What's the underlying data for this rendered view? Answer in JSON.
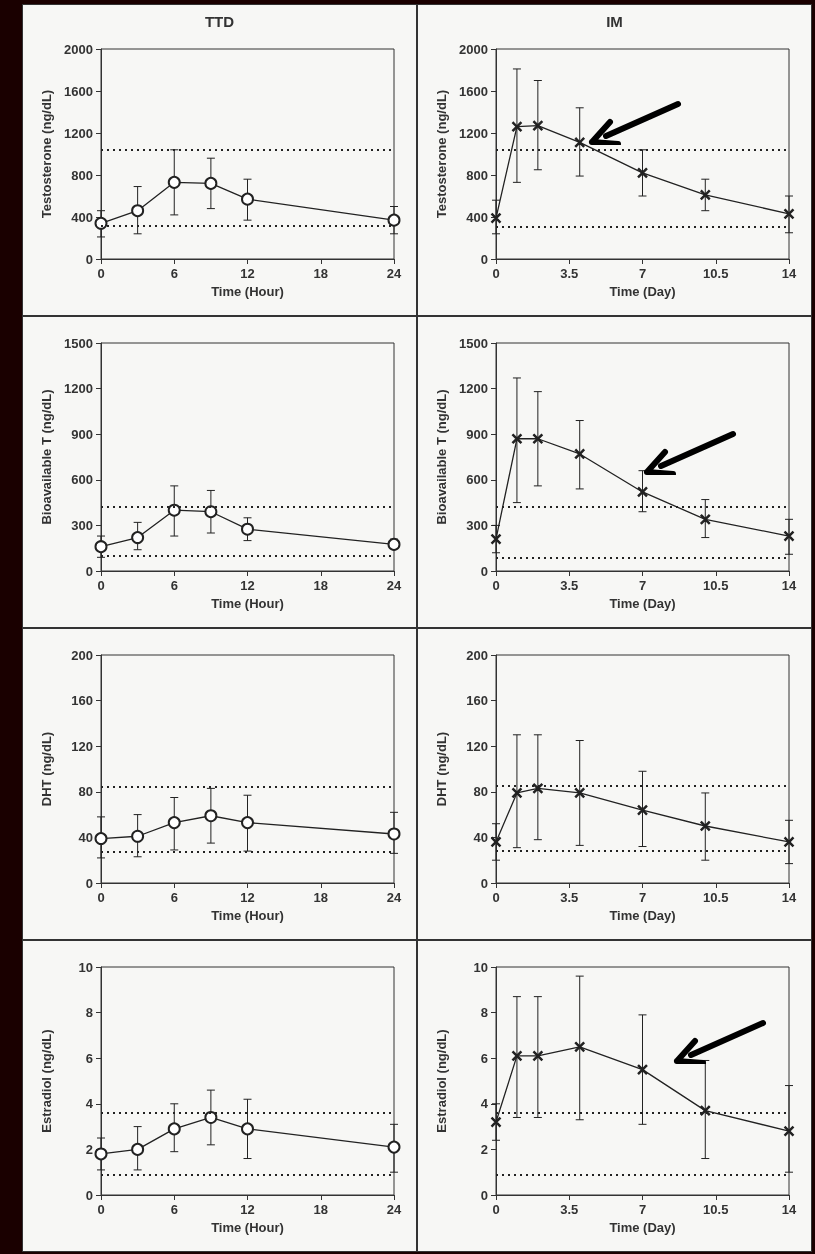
{
  "chart_data": [
    {
      "type": "line",
      "title": "TTD",
      "xlabel": "Time (Hour)",
      "ylabel": "Testosterone (ng/dL)",
      "x": [
        0,
        3,
        6,
        9,
        12,
        24
      ],
      "xlim": [
        0,
        24
      ],
      "xticks": [
        0,
        6,
        12,
        18,
        24
      ],
      "ylim": [
        0,
        2000
      ],
      "yticks": [
        0,
        400,
        800,
        1200,
        1600,
        2000
      ],
      "marker": "circle",
      "line_style": "solid",
      "series": [
        {
          "color": "#222222",
          "values": [
            340,
            460,
            730,
            720,
            570,
            370
          ],
          "errors": [
            [
              210,
              460
            ],
            [
              240,
              690
            ],
            [
              420,
              1040
            ],
            [
              480,
              960
            ],
            [
              370,
              760
            ],
            [
              240,
              500
            ]
          ]
        }
      ],
      "ref_lines": [
        {
          "axis": "y",
          "value": 1040,
          "line_style": "dotted"
        },
        {
          "axis": "y",
          "value": 320,
          "line_style": "dotted"
        }
      ]
    },
    {
      "type": "line",
      "title": "IM",
      "xlabel": "Time (Day)",
      "ylabel": "Testosterone (ng/dL)",
      "x": [
        0,
        1,
        2,
        4,
        7,
        10,
        14
      ],
      "xlim": [
        0,
        14
      ],
      "xticks": [
        0,
        3.5,
        7,
        10.5,
        14
      ],
      "ylim": [
        0,
        2000
      ],
      "yticks": [
        0,
        400,
        800,
        1200,
        1600,
        2000
      ],
      "marker": "cross",
      "line_style": "solid",
      "series": [
        {
          "color": "#222222",
          "values": [
            390,
            1260,
            1270,
            1110,
            820,
            610,
            430
          ],
          "errors": [
            [
              240,
              560
            ],
            [
              730,
              1810
            ],
            [
              850,
              1700
            ],
            [
              790,
              1440
            ],
            [
              600,
              1040
            ],
            [
              460,
              760
            ],
            [
              250,
              600
            ]
          ]
        }
      ],
      "ref_lines": [
        {
          "axis": "y",
          "value": 1040,
          "line_style": "dotted"
        },
        {
          "axis": "y",
          "value": 310,
          "line_style": "dotted"
        }
      ]
    },
    {
      "type": "line",
      "xlabel": "Time (Hour)",
      "ylabel": "Bioavailable T (ng/dL)",
      "x": [
        0,
        3,
        6,
        9,
        12,
        24
      ],
      "xlim": [
        0,
        24
      ],
      "xticks": [
        0,
        6,
        12,
        18,
        24
      ],
      "ylim": [
        0,
        1500
      ],
      "yticks": [
        0,
        300,
        600,
        900,
        1200,
        1500
      ],
      "marker": "circle",
      "line_style": "solid",
      "series": [
        {
          "color": "#222222",
          "values": [
            160,
            220,
            400,
            390,
            275,
            175
          ],
          "errors": [
            [
              90,
              230
            ],
            [
              140,
              320
            ],
            [
              230,
              560
            ],
            [
              250,
              530
            ],
            [
              200,
              350
            ],
            [
              150,
              210
            ]
          ]
        }
      ],
      "ref_lines": [
        {
          "axis": "y",
          "value": 420,
          "line_style": "dotted"
        },
        {
          "axis": "y",
          "value": 100,
          "line_style": "dotted"
        }
      ]
    },
    {
      "type": "line",
      "xlabel": "Time (Day)",
      "ylabel": "Bioavailable T (ng/dL)",
      "x": [
        0,
        1,
        2,
        4,
        7,
        10,
        14
      ],
      "xlim": [
        0,
        14
      ],
      "xticks": [
        0,
        3.5,
        7,
        10.5,
        14
      ],
      "ylim": [
        0,
        1500
      ],
      "yticks": [
        0,
        300,
        600,
        900,
        1200,
        1500
      ],
      "marker": "cross",
      "line_style": "solid",
      "series": [
        {
          "color": "#222222",
          "values": [
            210,
            870,
            870,
            770,
            520,
            340,
            230
          ],
          "errors": [
            [
              120,
              300
            ],
            [
              450,
              1270
            ],
            [
              560,
              1180
            ],
            [
              540,
              990
            ],
            [
              390,
              660
            ],
            [
              220,
              470
            ],
            [
              110,
              340
            ]
          ]
        }
      ],
      "ref_lines": [
        {
          "axis": "y",
          "value": 420,
          "line_style": "dotted"
        },
        {
          "axis": "y",
          "value": 90,
          "line_style": "dotted"
        }
      ]
    },
    {
      "type": "line",
      "xlabel": "Time (Hour)",
      "ylabel": "DHT (ng/dL)",
      "x": [
        0,
        3,
        6,
        9,
        12,
        24
      ],
      "xlim": [
        0,
        24
      ],
      "xticks": [
        0,
        6,
        12,
        18,
        24
      ],
      "ylim": [
        0,
        200
      ],
      "yticks": [
        0,
        40,
        80,
        120,
        160,
        200
      ],
      "marker": "circle",
      "line_style": "solid",
      "series": [
        {
          "color": "#222222",
          "values": [
            39,
            41,
            53,
            59,
            53,
            43
          ],
          "errors": [
            [
              22,
              58
            ],
            [
              23,
              60
            ],
            [
              29,
              75
            ],
            [
              35,
              83
            ],
            [
              28,
              77
            ],
            [
              26,
              62
            ]
          ]
        }
      ],
      "ref_lines": [
        {
          "axis": "y",
          "value": 84,
          "line_style": "dotted"
        },
        {
          "axis": "y",
          "value": 27,
          "line_style": "dotted"
        }
      ]
    },
    {
      "type": "line",
      "xlabel": "Time (Day)",
      "ylabel": "DHT (ng/dL)",
      "x": [
        0,
        1,
        2,
        4,
        7,
        10,
        14
      ],
      "xlim": [
        0,
        14
      ],
      "xticks": [
        0,
        3.5,
        7,
        10.5,
        14
      ],
      "ylim": [
        0,
        200
      ],
      "yticks": [
        0,
        40,
        80,
        120,
        160,
        200
      ],
      "marker": "cross",
      "line_style": "solid",
      "series": [
        {
          "color": "#222222",
          "values": [
            36,
            79,
            83,
            79,
            64,
            50,
            36
          ],
          "errors": [
            [
              20,
              52
            ],
            [
              31,
              130
            ],
            [
              38,
              130
            ],
            [
              33,
              125
            ],
            [
              32,
              98
            ],
            [
              20,
              79
            ],
            [
              17,
              55
            ]
          ]
        }
      ],
      "ref_lines": [
        {
          "axis": "y",
          "value": 85,
          "line_style": "dotted"
        },
        {
          "axis": "y",
          "value": 28,
          "line_style": "dotted"
        }
      ]
    },
    {
      "type": "line",
      "xlabel": "Time (Hour)",
      "ylabel": "Estradiol (ng/dL)",
      "x": [
        0,
        3,
        6,
        9,
        12,
        24
      ],
      "xlim": [
        0,
        24
      ],
      "xticks": [
        0,
        6,
        12,
        18,
        24
      ],
      "ylim": [
        0,
        10
      ],
      "yticks": [
        0,
        2,
        4,
        6,
        8,
        10
      ],
      "marker": "circle",
      "line_style": "solid",
      "series": [
        {
          "color": "#222222",
          "values": [
            1.8,
            2.0,
            2.9,
            3.4,
            2.9,
            2.1
          ],
          "errors": [
            [
              1.1,
              2.5
            ],
            [
              1.1,
              3.0
            ],
            [
              1.9,
              4.0
            ],
            [
              2.2,
              4.6
            ],
            [
              1.6,
              4.2
            ],
            [
              1.0,
              3.1
            ]
          ]
        }
      ],
      "ref_lines": [
        {
          "axis": "y",
          "value": 3.6,
          "line_style": "dotted"
        },
        {
          "axis": "y",
          "value": 0.9,
          "line_style": "dotted"
        }
      ]
    },
    {
      "type": "line",
      "xlabel": "Time (Day)",
      "ylabel": "Estradiol (ng/dL)",
      "x": [
        0,
        1,
        2,
        4,
        7,
        10,
        14
      ],
      "xlim": [
        0,
        14
      ],
      "xticks": [
        0,
        3.5,
        7,
        10.5,
        14
      ],
      "ylim": [
        0,
        10
      ],
      "yticks": [
        0,
        2,
        4,
        6,
        8,
        10
      ],
      "marker": "cross",
      "line_style": "solid",
      "series": [
        {
          "color": "#222222",
          "values": [
            3.2,
            6.1,
            6.1,
            6.5,
            5.5,
            3.7,
            2.8
          ],
          "errors": [
            [
              2.4,
              4.0
            ],
            [
              3.4,
              8.7
            ],
            [
              3.4,
              8.7
            ],
            [
              3.3,
              9.6
            ],
            [
              3.1,
              7.9
            ],
            [
              1.6,
              5.9
            ],
            [
              1.0,
              4.8
            ]
          ]
        }
      ],
      "ref_lines": [
        {
          "axis": "y",
          "value": 3.6,
          "line_style": "dotted"
        },
        {
          "axis": "y",
          "value": 0.9,
          "line_style": "dotted"
        }
      ]
    }
  ]
}
